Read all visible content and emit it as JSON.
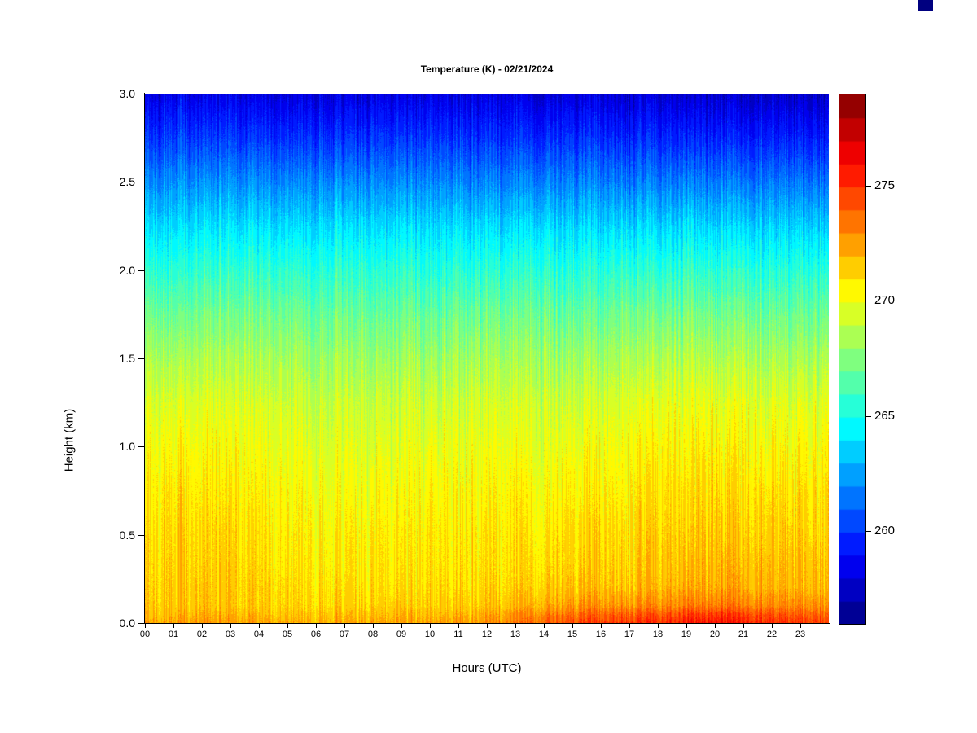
{
  "title": "Temperature (K) - 02/21/2024",
  "axes": {
    "x_label": "Hours (UTC)",
    "y_label": "Height (km)",
    "x_ticks": [
      "00",
      "01",
      "02",
      "03",
      "04",
      "05",
      "06",
      "07",
      "08",
      "09",
      "10",
      "11",
      "12",
      "13",
      "14",
      "15",
      "16",
      "17",
      "18",
      "19",
      "20",
      "21",
      "22",
      "23"
    ],
    "y_ticks": [
      "0.0",
      "0.5",
      "1.0",
      "1.5",
      "2.0",
      "2.5",
      "3.0"
    ]
  },
  "colorbar": {
    "ticks": [
      260,
      265,
      270,
      275
    ]
  },
  "decorations": {
    "corner_mark_color": "#000080"
  },
  "chart_data": {
    "type": "heatmap",
    "title": "Temperature (K) - 02/21/2024",
    "xlabel": "Hours (UTC)",
    "ylabel": "Height (km)",
    "xlim": [
      0,
      24
    ],
    "ylim": [
      0,
      3
    ],
    "colormap": "jet",
    "color_min": 256,
    "color_max": 279,
    "colorbar_ticks": [
      260,
      265,
      270,
      275
    ],
    "noise_amplitude": 1.7,
    "x": [
      0,
      1,
      2,
      3,
      4,
      5,
      6,
      7,
      8,
      9,
      10,
      11,
      12,
      13,
      14,
      15,
      16,
      17,
      18,
      19,
      20,
      21,
      22,
      23
    ],
    "y": [
      0.0,
      0.05,
      0.1,
      0.2,
      0.3,
      0.5,
      0.75,
      1.0,
      1.25,
      1.5,
      1.75,
      2.0,
      2.25,
      2.5,
      2.75,
      3.0
    ],
    "values": [
      [
        272.6,
        272.5,
        272.7,
        272.6,
        272.5,
        272.4,
        272.3,
        272.2,
        272.3,
        272.4,
        272.5,
        272.6,
        272.8,
        273.4,
        274.0,
        274.5,
        274.8,
        275.0,
        275.2,
        275.5,
        276.0,
        275.6,
        275.2,
        274.8
      ],
      [
        272.1,
        272.0,
        272.2,
        272.1,
        272.0,
        271.9,
        271.8,
        271.8,
        271.9,
        272.0,
        272.0,
        272.1,
        272.3,
        272.8,
        273.3,
        273.7,
        273.9,
        274.1,
        274.3,
        274.6,
        275.0,
        274.7,
        274.3,
        274.0
      ],
      [
        271.7,
        271.6,
        271.8,
        271.7,
        271.6,
        271.5,
        271.4,
        271.4,
        271.4,
        271.5,
        271.5,
        271.6,
        271.7,
        272.0,
        272.3,
        272.6,
        272.8,
        272.9,
        273.0,
        273.2,
        273.5,
        273.3,
        273.1,
        272.9
      ],
      [
        271.6,
        271.5,
        271.7,
        271.6,
        271.6,
        271.4,
        271.2,
        271.1,
        271.1,
        271.1,
        271.2,
        271.2,
        271.3,
        271.4,
        271.6,
        271.7,
        271.8,
        271.9,
        272.0,
        272.2,
        272.4,
        272.3,
        272.1,
        272.0
      ],
      [
        271.4,
        271.3,
        271.5,
        271.5,
        271.4,
        271.2,
        271.0,
        270.9,
        270.9,
        270.9,
        271.0,
        271.0,
        271.1,
        271.2,
        271.3,
        271.4,
        271.5,
        271.6,
        271.7,
        271.9,
        272.1,
        272.0,
        271.9,
        271.8
      ],
      [
        271.2,
        271.1,
        271.3,
        271.3,
        271.2,
        271.0,
        270.8,
        270.7,
        270.7,
        270.7,
        270.8,
        270.8,
        270.9,
        270.9,
        271.0,
        271.1,
        271.2,
        271.3,
        271.4,
        271.5,
        271.7,
        271.6,
        271.5,
        271.4
      ],
      [
        270.8,
        270.7,
        270.9,
        270.9,
        270.8,
        270.6,
        270.4,
        270.3,
        270.3,
        270.3,
        270.4,
        270.4,
        270.4,
        270.5,
        270.5,
        270.6,
        270.7,
        270.8,
        270.9,
        271.1,
        271.2,
        271.2,
        271.1,
        271.0
      ],
      [
        270.3,
        270.2,
        270.4,
        270.4,
        270.3,
        270.1,
        269.9,
        269.8,
        269.8,
        269.8,
        269.9,
        269.9,
        269.9,
        270.0,
        270.0,
        270.1,
        270.2,
        270.3,
        270.4,
        270.5,
        270.7,
        270.6,
        270.5,
        270.4
      ],
      [
        269.6,
        269.5,
        269.7,
        269.7,
        269.6,
        269.4,
        269.3,
        269.2,
        269.2,
        269.2,
        269.3,
        269.3,
        269.3,
        269.3,
        269.4,
        269.4,
        269.5,
        269.6,
        269.7,
        269.8,
        269.9,
        269.9,
        269.8,
        269.7
      ],
      [
        268.6,
        268.5,
        268.6,
        268.6,
        268.6,
        268.4,
        268.3,
        268.2,
        268.2,
        268.2,
        268.3,
        268.3,
        268.3,
        268.3,
        268.3,
        268.4,
        268.4,
        268.5,
        268.5,
        268.6,
        268.7,
        268.7,
        268.6,
        268.5
      ],
      [
        267.3,
        267.2,
        267.3,
        267.3,
        267.3,
        267.2,
        267.1,
        267.0,
        267.0,
        267.0,
        267.1,
        267.1,
        267.1,
        267.1,
        267.1,
        267.1,
        267.1,
        267.2,
        267.2,
        267.2,
        267.3,
        267.3,
        267.2,
        267.1
      ],
      [
        265.8,
        265.7,
        265.8,
        265.8,
        265.8,
        265.7,
        265.6,
        265.6,
        265.6,
        265.6,
        265.6,
        265.6,
        265.6,
        265.6,
        265.6,
        265.6,
        265.6,
        265.6,
        265.6,
        265.6,
        265.7,
        265.6,
        265.5,
        265.5
      ],
      [
        264.1,
        264.0,
        264.1,
        264.1,
        264.1,
        264.0,
        264.0,
        263.9,
        263.9,
        263.9,
        264.0,
        264.0,
        263.9,
        263.9,
        263.9,
        263.8,
        263.8,
        263.8,
        263.8,
        263.8,
        263.8,
        263.7,
        263.7,
        263.6
      ],
      [
        262.2,
        262.1,
        262.2,
        262.2,
        262.2,
        262.1,
        262.1,
        262.0,
        262.0,
        262.0,
        262.0,
        262.0,
        261.9,
        261.9,
        261.9,
        261.8,
        261.8,
        261.7,
        261.7,
        261.7,
        261.7,
        261.6,
        261.6,
        261.5
      ],
      [
        260.2,
        260.1,
        260.2,
        260.2,
        260.2,
        260.1,
        260.1,
        260.0,
        260.0,
        260.0,
        260.0,
        260.0,
        259.9,
        259.9,
        259.9,
        259.8,
        259.8,
        259.7,
        259.7,
        259.6,
        259.6,
        259.5,
        259.5,
        259.4
      ],
      [
        258.4,
        258.3,
        258.4,
        258.4,
        258.4,
        258.3,
        258.3,
        258.2,
        258.2,
        258.2,
        258.2,
        258.2,
        258.1,
        258.1,
        258.1,
        258.0,
        258.0,
        257.9,
        257.9,
        257.8,
        257.8,
        257.7,
        257.7,
        257.6
      ]
    ]
  }
}
